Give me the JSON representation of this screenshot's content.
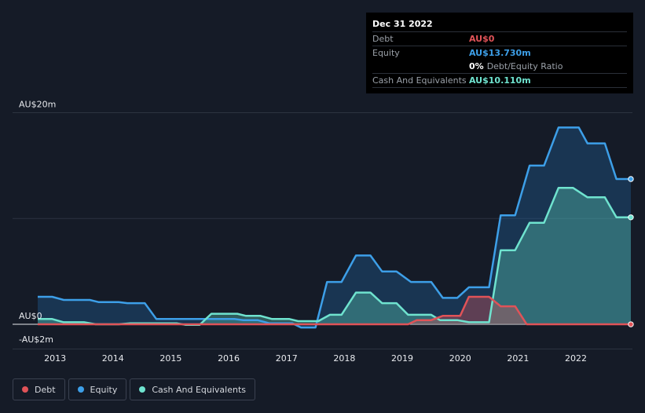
{
  "tooltip": {
    "date": "Dec 31 2022",
    "rows": [
      {
        "label": "Debt",
        "value": "AU$0",
        "color": "#e05358"
      },
      {
        "label": "Equity",
        "value": "AU$13.730m",
        "color": "#3d9fe8"
      },
      {
        "label": "",
        "value": "0%",
        "sub": "Debt/Equity Ratio",
        "color": "#ffffff"
      },
      {
        "label": "Cash And Equivalents",
        "value": "AU$10.110m",
        "color": "#6fe3cf"
      }
    ]
  },
  "legend": [
    {
      "label": "Debt",
      "color": "#e05358"
    },
    {
      "label": "Equity",
      "color": "#3d9fe8"
    },
    {
      "label": "Cash And Equivalents",
      "color": "#6fe3cf"
    }
  ],
  "chart_data": {
    "type": "area",
    "units": "AU$ millions",
    "ylim": [
      -2,
      20
    ],
    "y_tick_labels": [
      {
        "value": 20,
        "label": "AU$20m"
      },
      {
        "value": 0,
        "label": "AU$0"
      },
      {
        "value": -2,
        "label": "-AU$2m"
      }
    ],
    "xlim": [
      2012.7,
      2022.95
    ],
    "x_ticks": [
      2013,
      2014,
      2015,
      2016,
      2017,
      2018,
      2019,
      2020,
      2021,
      2022
    ],
    "x_tick_labels": [
      "2013",
      "2014",
      "2015",
      "2016",
      "2017",
      "2018",
      "2019",
      "2020",
      "2021",
      "2022"
    ],
    "series": [
      {
        "name": "Equity",
        "color": "#3d9fe8",
        "points": [
          [
            2012.7,
            2.6
          ],
          [
            2012.95,
            2.6
          ],
          [
            2013.15,
            2.3
          ],
          [
            2013.6,
            2.3
          ],
          [
            2013.75,
            2.1
          ],
          [
            2014.1,
            2.1
          ],
          [
            2014.25,
            2.0
          ],
          [
            2014.55,
            2.0
          ],
          [
            2014.75,
            0.5
          ],
          [
            2015.5,
            0.5
          ],
          [
            2015.75,
            0.5
          ],
          [
            2016.1,
            0.5
          ],
          [
            2016.25,
            0.4
          ],
          [
            2016.5,
            0.4
          ],
          [
            2016.7,
            0.1
          ],
          [
            2017.1,
            0.1
          ],
          [
            2017.25,
            -0.3
          ],
          [
            2017.5,
            -0.3
          ],
          [
            2017.7,
            4.0
          ],
          [
            2017.95,
            4.0
          ],
          [
            2018.2,
            6.5
          ],
          [
            2018.45,
            6.5
          ],
          [
            2018.65,
            5.0
          ],
          [
            2018.9,
            5.0
          ],
          [
            2019.15,
            4.0
          ],
          [
            2019.5,
            4.0
          ],
          [
            2019.7,
            2.5
          ],
          [
            2019.95,
            2.5
          ],
          [
            2020.15,
            3.5
          ],
          [
            2020.5,
            3.5
          ],
          [
            2020.7,
            10.3
          ],
          [
            2020.95,
            10.3
          ],
          [
            2021.2,
            15.0
          ],
          [
            2021.45,
            15.0
          ],
          [
            2021.7,
            18.6
          ],
          [
            2022.05,
            18.6
          ],
          [
            2022.2,
            17.1
          ],
          [
            2022.5,
            17.1
          ],
          [
            2022.7,
            13.73
          ],
          [
            2022.95,
            13.73
          ]
        ]
      },
      {
        "name": "Cash And Equivalents",
        "color": "#6fe3cf",
        "points": [
          [
            2012.7,
            0.5
          ],
          [
            2012.95,
            0.5
          ],
          [
            2013.15,
            0.2
          ],
          [
            2013.5,
            0.2
          ],
          [
            2013.7,
            0.0
          ],
          [
            2014.1,
            0.0
          ],
          [
            2014.3,
            0.1
          ],
          [
            2015.1,
            0.1
          ],
          [
            2015.25,
            -0.05
          ],
          [
            2015.5,
            -0.05
          ],
          [
            2015.7,
            1.0
          ],
          [
            2016.15,
            1.0
          ],
          [
            2016.3,
            0.8
          ],
          [
            2016.55,
            0.8
          ],
          [
            2016.75,
            0.5
          ],
          [
            2017.05,
            0.5
          ],
          [
            2017.2,
            0.3
          ],
          [
            2017.55,
            0.3
          ],
          [
            2017.75,
            0.9
          ],
          [
            2017.95,
            0.9
          ],
          [
            2018.2,
            3.0
          ],
          [
            2018.45,
            3.0
          ],
          [
            2018.65,
            2.0
          ],
          [
            2018.9,
            2.0
          ],
          [
            2019.1,
            0.9
          ],
          [
            2019.5,
            0.9
          ],
          [
            2019.65,
            0.4
          ],
          [
            2019.95,
            0.4
          ],
          [
            2020.15,
            0.2
          ],
          [
            2020.5,
            0.2
          ],
          [
            2020.7,
            7.0
          ],
          [
            2020.95,
            7.0
          ],
          [
            2021.2,
            9.6
          ],
          [
            2021.45,
            9.6
          ],
          [
            2021.7,
            12.9
          ],
          [
            2021.95,
            12.9
          ],
          [
            2022.2,
            12.0
          ],
          [
            2022.5,
            12.0
          ],
          [
            2022.7,
            10.11
          ],
          [
            2022.95,
            10.11
          ]
        ]
      },
      {
        "name": "Debt",
        "color": "#e05358",
        "points": [
          [
            2012.7,
            0.0
          ],
          [
            2019.1,
            0.0
          ],
          [
            2019.25,
            0.4
          ],
          [
            2019.5,
            0.4
          ],
          [
            2019.7,
            0.8
          ],
          [
            2020.0,
            0.8
          ],
          [
            2020.15,
            2.6
          ],
          [
            2020.5,
            2.6
          ],
          [
            2020.7,
            1.7
          ],
          [
            2020.95,
            1.7
          ],
          [
            2021.15,
            0.0
          ],
          [
            2022.95,
            0.0
          ]
        ]
      }
    ]
  }
}
